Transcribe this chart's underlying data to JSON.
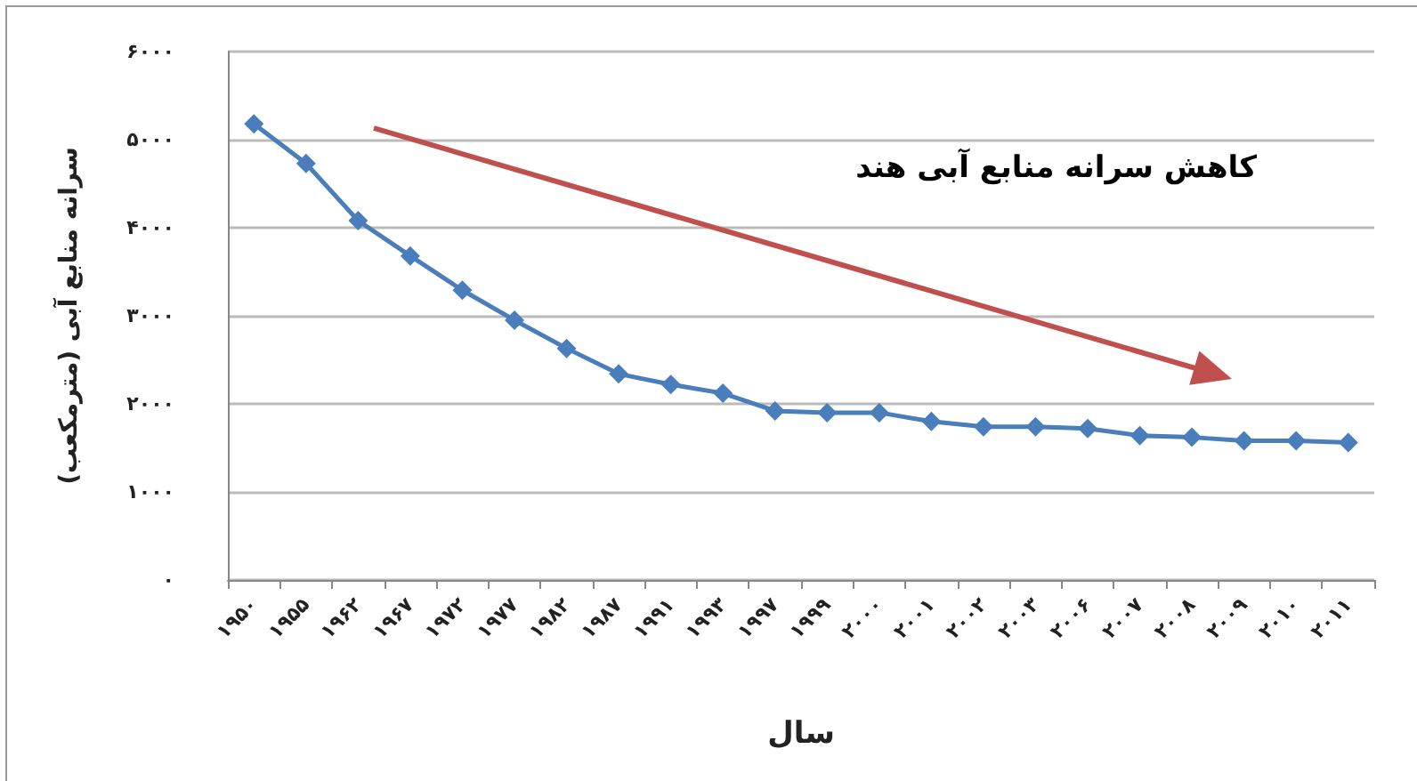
{
  "chart_data": {
    "type": "line",
    "xlabel": "سال",
    "ylabel": "سرانه منابع آبی (مترمکعب)",
    "annotations": [
      "کاهش سرانه منابع آبی هند"
    ],
    "categories": [
      "۱۹۵۰",
      "۱۹۵۵",
      "۱۹۶۲",
      "۱۹۶۷",
      "۱۹۷۲",
      "۱۹۷۷",
      "۱۹۸۲",
      "۱۹۸۷",
      "۱۹۹۱",
      "۱۹۹۳",
      "۱۹۹۷",
      "۱۹۹۹",
      "۲۰۰۰",
      "۲۰۰۱",
      "۲۰۰۲",
      "۲۰۰۳",
      "۲۰۰۶",
      "۲۰۰۷",
      "۲۰۰۸",
      "۲۰۰۹",
      "۲۰۱۰",
      "۲۰۱۱"
    ],
    "series": [
      {
        "color": "#4a7ebb",
        "values": [
          5180,
          4730,
          4080,
          3680,
          3290,
          2950,
          2630,
          2340,
          2220,
          2120,
          1920,
          1900,
          1900,
          1800,
          1740,
          1740,
          1720,
          1640,
          1620,
          1580,
          1580,
          1560
        ]
      }
    ],
    "ylim": [
      0,
      6000
    ],
    "yticks": [
      {
        "value": 0,
        "label": "۰"
      },
      {
        "value": 1000,
        "label": "۱۰۰۰"
      },
      {
        "value": 2000,
        "label": "۲۰۰۰"
      },
      {
        "value": 3000,
        "label": "۳۰۰۰"
      },
      {
        "value": 4000,
        "label": "۴۰۰۰"
      },
      {
        "value": 5000,
        "label": "۵۰۰۰"
      },
      {
        "value": 6000,
        "label": "۶۰۰۰"
      }
    ],
    "grid": "y",
    "marker": "diamond",
    "line_style": "solid"
  }
}
